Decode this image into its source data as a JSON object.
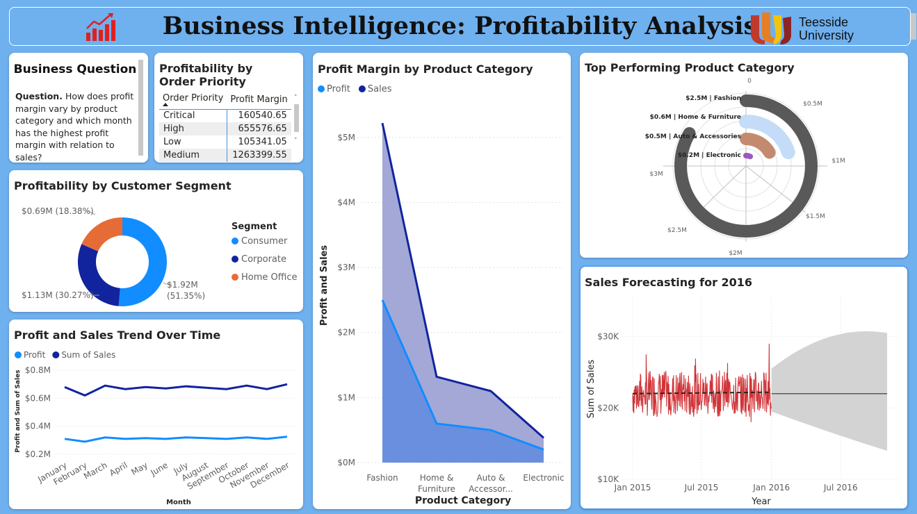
{
  "header": {
    "title": "Business Intelligence: Profitability Analysis",
    "university_line1": "Teesside",
    "university_line2": "University",
    "logo_icon": "bar-chart-trend-icon",
    "accent": "#e02020"
  },
  "business_question": {
    "title": "Business Question",
    "lead": "Question.",
    "text": "How does profit margin vary by product category and which month has the highest profit margin with relation to sales?"
  },
  "order_priority": {
    "title": "Profitability by Order Priority",
    "columns": [
      "Order Priority",
      "Profit Margin"
    ],
    "rows": [
      {
        "priority": "Critical",
        "margin": "160540.65"
      },
      {
        "priority": "High",
        "margin": "655576.65"
      },
      {
        "priority": "Low",
        "margin": "105341.05"
      },
      {
        "priority": "Medium",
        "margin": "1263399.55"
      }
    ]
  },
  "colors": {
    "profit": "#118dff",
    "sales": "#12239e",
    "home_office": "#e66c37"
  },
  "chart_data": [
    {
      "id": "segment",
      "type": "pie",
      "title": "Profitability by Customer Segment",
      "legend_title": "Segment",
      "legend_position": "right",
      "slices": [
        {
          "name": "Consumer",
          "value": 1.92,
          "label": "$1.92M",
          "pct_label": "(51.35%)",
          "color": "#118dff"
        },
        {
          "name": "Corporate",
          "value": 1.13,
          "label": "$1.13M (30.27%)",
          "color": "#12239e"
        },
        {
          "name": "Home Office",
          "value": 0.69,
          "label": "$0.69M (18.38%)",
          "color": "#e66c37"
        }
      ]
    },
    {
      "id": "trend",
      "type": "line",
      "title": "Profit and Sales Trend Over Time",
      "xlabel": "Month",
      "ylabel": "Profit and Sum of Sales",
      "ylim": [
        0.2,
        0.8
      ],
      "yticks": [
        0.2,
        0.4,
        0.6,
        0.8
      ],
      "ytick_labels": [
        "$0.2M",
        "$0.4M",
        "$0.6M",
        "$0.8M"
      ],
      "legend_position": "top-left",
      "categories": [
        "January",
        "February",
        "March",
        "April",
        "May",
        "June",
        "July",
        "August",
        "September",
        "October",
        "November",
        "December"
      ],
      "series": [
        {
          "name": "Profit",
          "color": "#118dff",
          "values": [
            0.31,
            0.29,
            0.32,
            0.31,
            0.315,
            0.31,
            0.32,
            0.315,
            0.31,
            0.32,
            0.31,
            0.325
          ]
        },
        {
          "name": "Sum of Sales",
          "color": "#12239e",
          "values": [
            0.68,
            0.62,
            0.69,
            0.665,
            0.68,
            0.67,
            0.685,
            0.675,
            0.665,
            0.69,
            0.665,
            0.7
          ]
        }
      ]
    },
    {
      "id": "category_area",
      "type": "area",
      "title": "Profit Margin by Product Category",
      "xlabel": "Product Category",
      "ylabel": "Profit and Sales",
      "ylim": [
        0,
        5.5
      ],
      "yticks": [
        0,
        1,
        2,
        3,
        4,
        5
      ],
      "ytick_labels": [
        "$0M",
        "$1M",
        "$2M",
        "$3M",
        "$4M",
        "$5M"
      ],
      "legend_position": "top-left",
      "categories": [
        [
          "Fashion"
        ],
        [
          "Home &",
          "Furniture"
        ],
        [
          "Auto &",
          "Accessor..."
        ],
        [
          "Electronic"
        ]
      ],
      "series": [
        {
          "name": "Profit",
          "color": "#118dff",
          "values": [
            2.5,
            0.6,
            0.5,
            0.2
          ]
        },
        {
          "name": "Sales",
          "color": "#12239e",
          "values": [
            5.22,
            1.32,
            1.1,
            0.38
          ]
        }
      ]
    },
    {
      "id": "radial",
      "type": "bar",
      "subtype": "radial",
      "title": "Top Performing Product Category",
      "range": [
        0,
        3
      ],
      "tick_labels": [
        "0",
        "$0.5M",
        "$1M",
        "$1.5M",
        "$2M",
        "$2.5M",
        "$3M"
      ],
      "bars": [
        {
          "label": "$2.5M | Fashion",
          "value": 2.5,
          "color": "#595959"
        },
        {
          "label": "$0.6M | Home & Furniture",
          "value": 0.6,
          "color": "#c5dcf8"
        },
        {
          "label": "$0.5M | Auto & Accessories",
          "value": 0.5,
          "color": "#c48a6f"
        },
        {
          "label": "$0.2M | Electronic",
          "value": 0.2,
          "color": "#9b59c2"
        }
      ]
    },
    {
      "id": "forecast",
      "type": "line",
      "title": "Sales Forecasting for 2016",
      "xlabel": "Year",
      "ylabel": "Sum of Sales",
      "ylim": [
        10,
        32
      ],
      "yticks": [
        10,
        20,
        30
      ],
      "ytick_labels": [
        "$10K",
        "$20K",
        "$30K"
      ],
      "xtick_labels": [
        "Jan 2015",
        "Jul 2015",
        "Jan 2016",
        "Jul 2016"
      ],
      "x_range": [
        "2015-01-01",
        "2016-12-01"
      ],
      "actual": {
        "start": "2015-01-01",
        "end": "2015-12-31",
        "mean": 22.0,
        "min": 18.0,
        "max": 29.0,
        "color": "#d13438"
      },
      "trend": {
        "start": "2015-01-01",
        "end": "2015-12-31",
        "from": 22.0,
        "to": 22.2,
        "color": "#252423"
      },
      "forecast": {
        "start": "2016-01-01",
        "end": "2016-10-31",
        "value": 22.0,
        "band_start": [
          19.5,
          25.5
        ],
        "band_end": [
          14.0,
          30.5
        ],
        "band_color": "#d3d3d3"
      }
    }
  ]
}
